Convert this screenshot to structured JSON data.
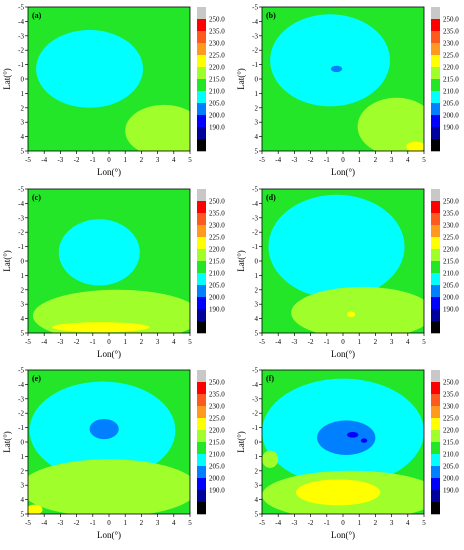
{
  "figure": {
    "xlabel": "Lon(°)",
    "ylabel": "Lat(°)"
  },
  "chart_data": [
    {
      "type": "heatmap",
      "panel": "(a)",
      "x_ticks": [
        -5,
        -4,
        -3,
        -2,
        -1,
        0,
        1,
        2,
        3,
        4,
        5
      ],
      "y_ticks": [
        -5,
        -4,
        -3,
        -2,
        -1,
        0,
        1,
        2,
        3,
        4,
        5
      ],
      "xlim": [
        -5,
        5
      ],
      "ylim": [
        -5,
        5
      ],
      "y_inverted": true,
      "blobs": [
        {
          "level": 210,
          "cx": -1.2,
          "cy": -0.7,
          "rx": 3.3,
          "ry": 2.7
        },
        {
          "level": 220,
          "cx": 3.4,
          "cy": 3.6,
          "rx": 2.4,
          "ry": 1.8
        }
      ]
    },
    {
      "type": "heatmap",
      "panel": "(b)",
      "x_ticks": [
        -5,
        -4,
        -3,
        -2,
        -1,
        0,
        1,
        2,
        3,
        4,
        5
      ],
      "y_ticks": [
        -5,
        -4,
        -3,
        -2,
        -1,
        0,
        1,
        2,
        3,
        4,
        5
      ],
      "xlim": [
        -5,
        5
      ],
      "ylim": [
        -5,
        5
      ],
      "y_inverted": true,
      "blobs": [
        {
          "level": 210,
          "cx": -0.8,
          "cy": -1.3,
          "rx": 3.7,
          "ry": 3.2
        },
        {
          "level": 205,
          "cx": -0.4,
          "cy": -0.7,
          "rx": 0.35,
          "ry": 0.22
        },
        {
          "level": 220,
          "cx": 3.3,
          "cy": 3.3,
          "rx": 2.4,
          "ry": 2.0
        },
        {
          "level": 225,
          "cx": 4.5,
          "cy": 4.7,
          "rx": 0.6,
          "ry": 0.35
        }
      ]
    },
    {
      "type": "heatmap",
      "panel": "(c)",
      "x_ticks": [
        -5,
        -4,
        -3,
        -2,
        -1,
        0,
        1,
        2,
        3,
        4,
        5
      ],
      "y_ticks": [
        -5,
        -4,
        -3,
        -2,
        -1,
        0,
        1,
        2,
        3,
        4,
        5
      ],
      "xlim": [
        -5,
        5
      ],
      "ylim": [
        -5,
        5
      ],
      "y_inverted": true,
      "blobs": [
        {
          "level": 210,
          "cx": -0.6,
          "cy": -0.6,
          "rx": 2.5,
          "ry": 2.3
        },
        {
          "level": 220,
          "cx": 0.5,
          "cy": 3.8,
          "rx": 5.2,
          "ry": 1.8
        },
        {
          "level": 225,
          "cx": -0.5,
          "cy": 4.6,
          "rx": 3.0,
          "ry": 0.35
        }
      ]
    },
    {
      "type": "heatmap",
      "panel": "(d)",
      "x_ticks": [
        -5,
        -4,
        -3,
        -2,
        -1,
        0,
        1,
        2,
        3,
        4,
        5
      ],
      "y_ticks": [
        -5,
        -4,
        -3,
        -2,
        -1,
        0,
        1,
        2,
        3,
        4,
        5
      ],
      "xlim": [
        -5,
        5
      ],
      "ylim": [
        -5,
        5
      ],
      "y_inverted": true,
      "blobs": [
        {
          "level": 210,
          "cx": -0.4,
          "cy": -1.0,
          "rx": 4.2,
          "ry": 3.6
        },
        {
          "level": 220,
          "cx": 1.2,
          "cy": 3.6,
          "rx": 4.4,
          "ry": 1.8
        },
        {
          "level": 225,
          "cx": 0.5,
          "cy": 3.7,
          "rx": 0.25,
          "ry": 0.2
        }
      ]
    },
    {
      "type": "heatmap",
      "panel": "(e)",
      "x_ticks": [
        -5,
        -4,
        -3,
        -2,
        -1,
        0,
        1,
        2,
        3,
        4,
        5
      ],
      "y_ticks": [
        -5,
        -4,
        -3,
        -2,
        -1,
        0,
        1,
        2,
        3,
        4,
        5
      ],
      "xlim": [
        -5,
        5
      ],
      "ylim": [
        -5,
        5
      ],
      "y_inverted": true,
      "blobs": [
        {
          "level": 210,
          "cx": -0.4,
          "cy": -0.8,
          "rx": 4.5,
          "ry": 3.4
        },
        {
          "level": 205,
          "cx": -0.3,
          "cy": -0.9,
          "rx": 0.9,
          "ry": 0.7
        },
        {
          "level": 220,
          "cx": 0.0,
          "cy": 3.2,
          "rx": 5.5,
          "ry": 2.0
        },
        {
          "level": 225,
          "cx": -4.6,
          "cy": 4.7,
          "rx": 0.5,
          "ry": 0.35
        }
      ]
    },
    {
      "type": "heatmap",
      "panel": "(f)",
      "x_ticks": [
        -5,
        -4,
        -3,
        -2,
        -1,
        0,
        1,
        2,
        3,
        4,
        5
      ],
      "y_ticks": [
        -5,
        -4,
        -3,
        -2,
        -1,
        0,
        1,
        2,
        3,
        4,
        5
      ],
      "xlim": [
        -5,
        5
      ],
      "ylim": [
        -5,
        5
      ],
      "y_inverted": true,
      "blobs": [
        {
          "level": 210,
          "cx": 0.0,
          "cy": -0.7,
          "rx": 5.0,
          "ry": 3.7
        },
        {
          "level": 205,
          "cx": 0.2,
          "cy": -0.3,
          "rx": 1.8,
          "ry": 1.2
        },
        {
          "level": 200,
          "cx": 0.6,
          "cy": -0.5,
          "rx": 0.35,
          "ry": 0.2
        },
        {
          "level": 200,
          "cx": 1.3,
          "cy": -0.1,
          "rx": 0.2,
          "ry": 0.15
        },
        {
          "level": 220,
          "cx": 0.5,
          "cy": 3.7,
          "rx": 5.5,
          "ry": 1.7
        },
        {
          "level": 225,
          "cx": -0.3,
          "cy": 3.5,
          "rx": 2.6,
          "ry": 0.9
        },
        {
          "level": 220,
          "cx": -4.5,
          "cy": 1.2,
          "rx": 0.5,
          "ry": 0.6
        }
      ]
    }
  ],
  "colorbar": {
    "tick_labels": [
      "250.0",
      "235.0",
      "230.0",
      "225.0",
      "220.0",
      "215.0",
      "210.0",
      "205.0",
      "200.0",
      "190.0"
    ],
    "bands": [
      {
        "level": 250,
        "color": "#c8c8c8"
      },
      {
        "level": 240,
        "color": "#ff0000"
      },
      {
        "level": 235,
        "color": "#ff5a1e"
      },
      {
        "level": 230,
        "color": "#ff9a1e"
      },
      {
        "level": 225,
        "color": "#ffff00"
      },
      {
        "level": 220,
        "color": "#a0ff2b"
      },
      {
        "level": 215,
        "color": "#23e628"
      },
      {
        "level": 210,
        "color": "#00ffff"
      },
      {
        "level": 205,
        "color": "#007fff"
      },
      {
        "level": 200,
        "color": "#0000ff"
      },
      {
        "level": 195,
        "color": "#00009c"
      },
      {
        "level": 190,
        "color": "#000000"
      }
    ],
    "base_level": 215
  }
}
